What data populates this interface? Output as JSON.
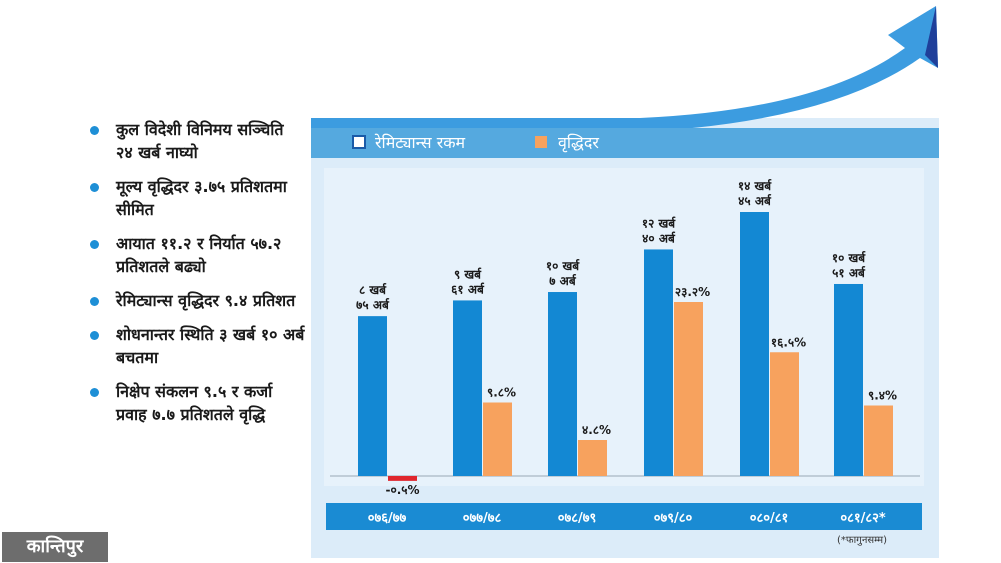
{
  "bullets": [
    "कुल विदेशी विनिमय सञ्चिति २४ खर्ब नाघ्यो",
    "मूल्य वृद्धिदर ३.७५ प्रतिशतमा सीमित",
    "आयात ११.२ र निर्यात ५७.२ प्रतिशतले बढ्यो",
    "रेमिट्यान्स वृद्धिदर ९.४ प्रतिशत",
    "शोधनान्तर स्थिति ३ खर्ब १० अर्ब बचतमा",
    "निक्षेप संकलन ९.५ र कर्जा प्रवाह ७.७ प्रतिशतले वृद्धि"
  ],
  "logo": "कान्तिपुर",
  "colors": {
    "remittance": "#1388d3",
    "growth": "#f7a25e",
    "negative": "#e0262d",
    "header": "#55a9df",
    "panel": "#dcecf9",
    "axis_band": "#1a8bd3",
    "arrow": "#3c9ce0"
  },
  "chart_data": {
    "type": "bar",
    "legend_position": "top-left",
    "footnote": "(*फागुनसम्म)",
    "categories": [
      "०७६/७७",
      "०७७/७८",
      "०७८/७९",
      "०७९/८०",
      "०८०/८१",
      "०८१/८२*"
    ],
    "series": [
      {
        "name": "रेमिट्यान्स रकम",
        "values": [
          875,
          961,
          1007,
          1240,
          1445,
          1051
        ],
        "labels": [
          [
            "८ खर्ब",
            "७५ अर्ब"
          ],
          [
            "९ खर्ब",
            "६१ अर्ब"
          ],
          [
            "१० खर्ब",
            "७ अर्ब"
          ],
          [
            "१२ खर्ब",
            "४० अर्ब"
          ],
          [
            "१४ खर्ब",
            "४५ अर्ब"
          ],
          [
            "१० खर्ब",
            "५१ अर्ब"
          ]
        ]
      },
      {
        "name": "वृद्धिदर",
        "values": [
          -0.5,
          9.8,
          4.8,
          23.2,
          16.5,
          9.4
        ],
        "labels": [
          "-०.५%",
          "९.८%",
          "४.८%",
          "२३.२%",
          "१६.५%",
          "९.४%"
        ]
      }
    ]
  }
}
